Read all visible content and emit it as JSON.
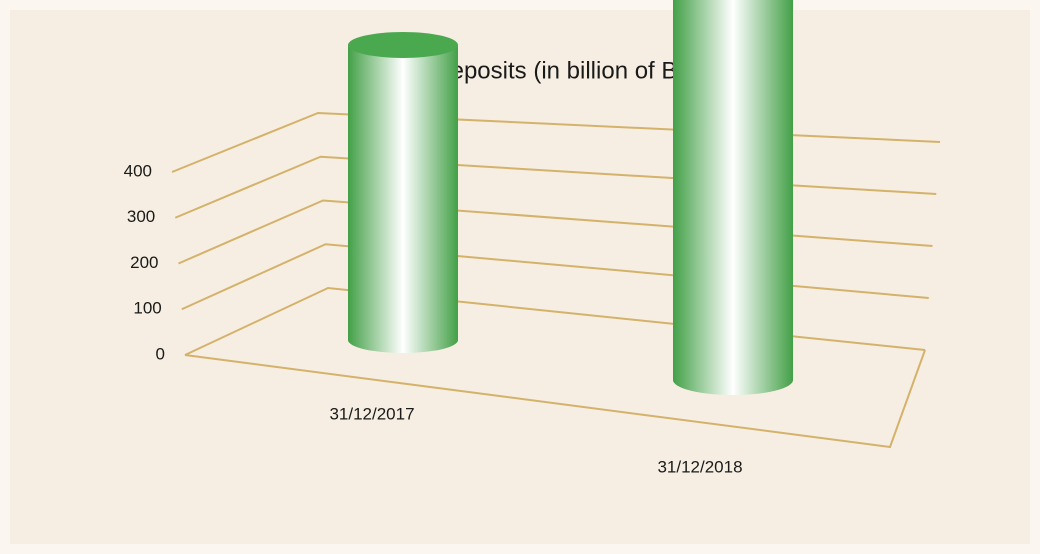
{
  "chart_data": {
    "type": "bar3d",
    "title": "Deposits (in billion of BIF)",
    "categories": [
      "31/12/2017",
      "31/12/2018"
    ],
    "values": [
      250,
      365
    ],
    "color": "#4aa84f",
    "ylim": [
      0,
      400
    ],
    "yticks": [
      0,
      100,
      200,
      300,
      400
    ],
    "grid": true
  }
}
